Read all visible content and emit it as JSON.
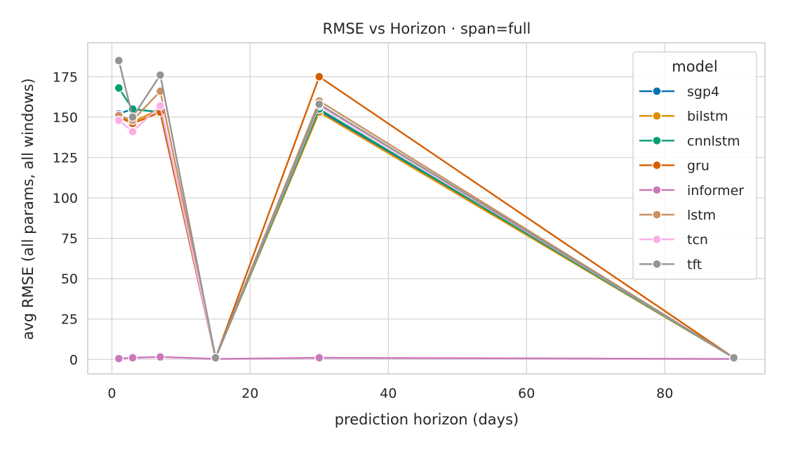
{
  "chart_data": {
    "type": "line",
    "title": "RMSE vs Horizon  ·  span=full",
    "xlabel": "prediction horizon (days)",
    "ylabel": "avg RMSE (all params, all windows)",
    "xlim": [
      -3.5,
      94.5
    ],
    "ylim": [
      -9,
      196
    ],
    "xticks": [
      0,
      20,
      40,
      60,
      80
    ],
    "yticks": [
      0,
      25,
      50,
      75,
      100,
      125,
      150,
      175
    ],
    "grid": true,
    "x": [
      1,
      3,
      7,
      15,
      30,
      90
    ],
    "legend": {
      "title": "model",
      "placement": "top-right"
    },
    "series": [
      {
        "name": "sgp4",
        "color": "#0173b2",
        "values": [
          152,
          155,
          153,
          1,
          154,
          1
        ]
      },
      {
        "name": "bilstm",
        "color": "#de8f05",
        "values": [
          151,
          147,
          155,
          1,
          153,
          1
        ]
      },
      {
        "name": "cnnlstm",
        "color": "#029e73",
        "values": [
          168,
          155,
          153,
          1,
          155,
          1
        ]
      },
      {
        "name": "gru",
        "color": "#d55e00",
        "values": [
          150,
          146,
          153,
          1,
          175,
          1
        ]
      },
      {
        "name": "informer",
        "color": "#cc78bc",
        "values": [
          0.5,
          1,
          1.5,
          0.3,
          1,
          0.3
        ]
      },
      {
        "name": "lstm",
        "color": "#ca9161",
        "values": [
          151,
          148,
          166,
          1,
          160,
          1
        ]
      },
      {
        "name": "tcn",
        "color": "#fbafe4",
        "values": [
          148,
          141,
          157,
          1,
          157,
          1
        ]
      },
      {
        "name": "tft",
        "color": "#949494",
        "values": [
          185,
          150,
          176,
          1,
          158,
          1
        ]
      }
    ]
  }
}
